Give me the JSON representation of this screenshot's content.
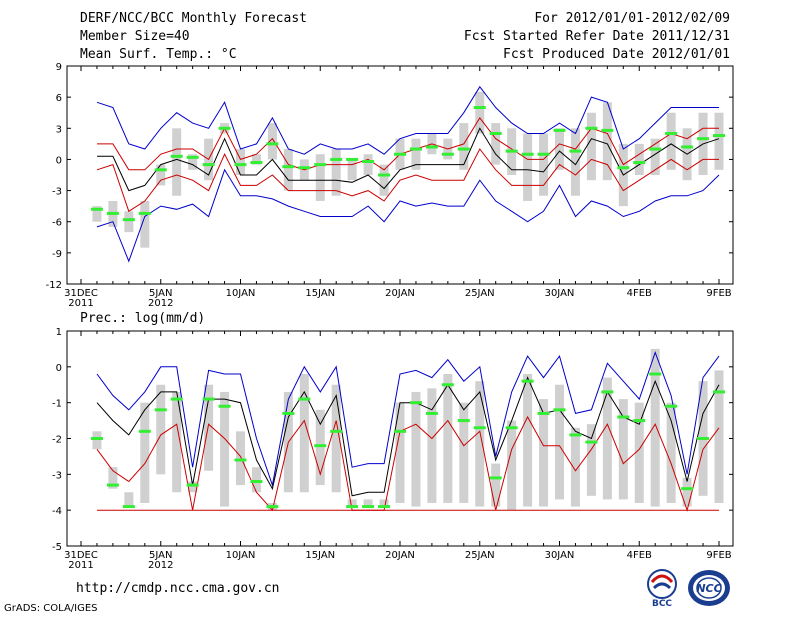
{
  "header": {
    "title": "DERF/NCC/BCC Monthly Forecast",
    "member_size": "Member Size=40",
    "variable1": "Mean Surf. Temp.: °C",
    "period": "For 2012/01/01-2012/02/09",
    "fcst_started": "Fcst Started Refer Date 2011/12/31",
    "fcst_produced": "Fcst Produced Date 2012/01/01"
  },
  "panel2_label": "Prec.: log(mm/d)",
  "footer": {
    "url": "http://cmdp.ncc.cma.gov.cn",
    "grads": "GrADS: COLA/IGES"
  },
  "logos": {
    "bcc": "BCC",
    "ncc": "NCC"
  },
  "colors": {
    "ensemble_max_min": "#0000cc",
    "spread": "#cc0000",
    "mean": "#000000",
    "box": "#d0d0d0",
    "median": "#33ee33"
  },
  "chart_data": [
    {
      "type": "line",
      "title": "Mean Surf. Temp.: °C",
      "x_tick_labels": [
        "31DEC\n2011",
        "5JAN\n2012",
        "10JAN",
        "15JAN",
        "20JAN",
        "25JAN",
        "30JAN",
        "4FEB",
        "9FEB"
      ],
      "x_tick_days": [
        0,
        5,
        10,
        15,
        20,
        25,
        30,
        35,
        40
      ],
      "ylim": [
        -12,
        9
      ],
      "y_ticks": [
        -12,
        -9,
        -6,
        -3,
        0,
        3,
        6,
        9
      ],
      "days": [
        1,
        2,
        3,
        4,
        5,
        6,
        7,
        8,
        9,
        10,
        11,
        12,
        13,
        14,
        15,
        16,
        17,
        18,
        19,
        20,
        21,
        22,
        23,
        24,
        25,
        26,
        27,
        28,
        29,
        30,
        31,
        32,
        33,
        34,
        35,
        36,
        37,
        38,
        39,
        40
      ],
      "series": [
        {
          "name": "max",
          "color": "#0000cc",
          "values": [
            5.5,
            5,
            1.5,
            1,
            3,
            4.5,
            3.5,
            3,
            5.5,
            1,
            1.5,
            4,
            1,
            0.5,
            1.5,
            1,
            1,
            1.5,
            0.5,
            2,
            2.5,
            2.5,
            2.5,
            4.5,
            7,
            5,
            3.5,
            2.5,
            2.5,
            3.5,
            2.5,
            6,
            5.5,
            1,
            2,
            3.5,
            5,
            5,
            5,
            5
          ]
        },
        {
          "name": "upper",
          "color": "#cc0000",
          "values": [
            1.5,
            1.5,
            -1,
            -1,
            0.5,
            1,
            1,
            0,
            3,
            0,
            0.5,
            2,
            -0.5,
            -1,
            -0.5,
            -0.5,
            -0.5,
            0,
            -1,
            0.5,
            1,
            1.5,
            1,
            1.5,
            4,
            2,
            1,
            0,
            0,
            1.5,
            1,
            3,
            2.5,
            -0.5,
            0.5,
            1.5,
            2.5,
            2,
            3,
            3
          ]
        },
        {
          "name": "mean",
          "color": "#000000",
          "values": [
            0.3,
            0.3,
            -3,
            -2.5,
            -0.5,
            0,
            -0.5,
            -1.5,
            2,
            -1.5,
            -1.5,
            0,
            -2,
            -2,
            -2,
            -2,
            -2.2,
            -1.5,
            -2.8,
            -1,
            -0.5,
            -0.5,
            -0.5,
            -0.5,
            3,
            0.5,
            -1,
            -1,
            -1.2,
            0.8,
            -0.5,
            2,
            1.5,
            -1.5,
            -0.5,
            0.5,
            1.5,
            0.5,
            1.5,
            2
          ]
        },
        {
          "name": "lower",
          "color": "#cc0000",
          "values": [
            -1,
            -0.5,
            -5,
            -4,
            -2,
            -1.5,
            -2,
            -3,
            0.5,
            -2.5,
            -2.5,
            -1.5,
            -3,
            -3,
            -3,
            -3,
            -3.5,
            -3,
            -4,
            -2,
            -1.5,
            -2,
            -2,
            -2,
            1,
            -1,
            -2.5,
            -2.5,
            -2.5,
            -0.5,
            -1.5,
            0,
            -0.5,
            -3,
            -2,
            -1,
            0,
            -1,
            0,
            0
          ]
        },
        {
          "name": "min",
          "color": "#0000cc",
          "values": [
            -6.5,
            -6,
            -9.8,
            -5.5,
            -4.5,
            -4.8,
            -4.3,
            -5.5,
            -1,
            -3.5,
            -3.5,
            -3.8,
            -4.5,
            -5,
            -5.5,
            -5.5,
            -5.5,
            -4.5,
            -6,
            -4,
            -4.5,
            -4.2,
            -4.5,
            -4.5,
            -2,
            -4,
            -5,
            -6,
            -5,
            -2.5,
            -5.5,
            -4,
            -4.5,
            -5.5,
            -5,
            -4,
            -3.5,
            -3.5,
            -3,
            -1.5
          ]
        }
      ],
      "box_low": [
        -6,
        -6.5,
        -7,
        -8.5,
        -2.5,
        -3.5,
        -1,
        -2,
        2.5,
        -1.5,
        -0.5,
        0,
        -3,
        -2,
        -4,
        -3.5,
        -2,
        -1.5,
        -3.5,
        -1,
        -1,
        0.5,
        0,
        -1,
        2.5,
        -0.5,
        -1.5,
        -4,
        -3.5,
        -1,
        -3.5,
        -2,
        -2,
        -4.5,
        -1.5,
        -1.5,
        -1,
        -2,
        -1.5,
        -1
      ],
      "box_high": [
        -4.5,
        -4,
        -5,
        -4,
        -0.5,
        3,
        0.5,
        2,
        3.5,
        1,
        0.5,
        3.5,
        1,
        0,
        0.5,
        1,
        0,
        0.5,
        -0.5,
        2,
        2,
        2.5,
        2,
        3.5,
        6.5,
        3.5,
        3,
        2.5,
        2.5,
        3,
        3,
        4.5,
        5.5,
        1.5,
        1.5,
        2,
        4.5,
        3,
        4.5,
        4.5
      ],
      "medians": [
        -4.8,
        -5.2,
        -5.8,
        -5.2,
        -1,
        0.3,
        0.2,
        -0.5,
        3,
        -0.5,
        -0.3,
        1.5,
        -0.7,
        -0.8,
        -0.5,
        0,
        0,
        -0.2,
        -1.5,
        0.5,
        1,
        1.2,
        0.5,
        1,
        5,
        2.5,
        0.8,
        0.5,
        0.5,
        2.8,
        0.8,
        3,
        2.8,
        -0.8,
        -0.3,
        1,
        2.5,
        1.2,
        2,
        2.3
      ]
    },
    {
      "type": "line",
      "title": "Prec.: log(mm/d)",
      "x_tick_labels": [
        "31DEC\n2011",
        "5JAN\n2012",
        "10JAN",
        "15JAN",
        "20JAN",
        "25JAN",
        "30JAN",
        "4FEB",
        "9FEB"
      ],
      "x_tick_days": [
        0,
        5,
        10,
        15,
        20,
        25,
        30,
        35,
        40
      ],
      "ylim": [
        -5,
        1
      ],
      "y_ticks": [
        -5,
        -4,
        -3,
        -2,
        -1,
        0,
        1
      ],
      "days": [
        1,
        2,
        3,
        4,
        5,
        6,
        7,
        8,
        9,
        10,
        11,
        12,
        13,
        14,
        15,
        16,
        17,
        18,
        19,
        20,
        21,
        22,
        23,
        24,
        25,
        26,
        27,
        28,
        29,
        30,
        31,
        32,
        33,
        34,
        35,
        36,
        37,
        38,
        39,
        40
      ],
      "series": [
        {
          "name": "max",
          "color": "#0000cc",
          "values": [
            -0.2,
            -0.8,
            -1.2,
            -0.7,
            0,
            0,
            -2.8,
            -0.1,
            -0.2,
            -0.2,
            -2,
            -3.3,
            -0.9,
            0,
            -0.7,
            0,
            -2.8,
            -2.7,
            -2.7,
            -0.2,
            -0.1,
            -0.3,
            0.2,
            -0.4,
            0,
            -2.5,
            -0.7,
            0.3,
            -0.3,
            0.3,
            -1.3,
            -1.2,
            0.1,
            -0.4,
            -0.9,
            0.4,
            -0.8,
            -3,
            -0.3,
            0.3
          ]
        },
        {
          "name": "mean",
          "color": "#000000",
          "values": [
            -1,
            -1.5,
            -1.9,
            -1.2,
            -0.7,
            -0.7,
            -3.3,
            -0.9,
            -0.9,
            -1,
            -2.6,
            -3.4,
            -1.4,
            -0.7,
            -1.6,
            -0.8,
            -3.6,
            -3.5,
            -3.5,
            -1,
            -1,
            -1.2,
            -0.5,
            -1.2,
            -0.7,
            -2.6,
            -1.5,
            -0.3,
            -1.3,
            -1.2,
            -1.8,
            -2,
            -0.7,
            -1.4,
            -1.6,
            -0.4,
            -1.5,
            -3.2,
            -1.3,
            -0.5
          ]
        },
        {
          "name": "lower",
          "color": "#cc0000",
          "values": [
            -2.3,
            -2.9,
            -3.2,
            -2.7,
            -1.9,
            -1.6,
            -4,
            -1.6,
            -2,
            -2.5,
            -3.5,
            -4,
            -2.1,
            -1.5,
            -3,
            -1.5,
            -4,
            -4,
            -4,
            -1.8,
            -1.6,
            -2,
            -1.5,
            -2.2,
            -1.8,
            -4,
            -2.3,
            -1.4,
            -2.2,
            -2.2,
            -2.9,
            -2.3,
            -1.6,
            -2.7,
            -2.3,
            -1.6,
            -2.7,
            -4,
            -2.3,
            -1.7
          ]
        },
        {
          "name": "floor",
          "color": "#cc0000",
          "values": [
            -4,
            -4,
            -4,
            -4,
            -4,
            -4,
            -4,
            -4,
            -4,
            -4,
            -4,
            -4,
            -4,
            -4,
            -4,
            -4,
            -4,
            -4,
            -4,
            -4,
            -4,
            -4,
            -4,
            -4,
            -4,
            -4,
            -4,
            -4,
            -4,
            -4,
            -4,
            -4,
            -4,
            -4,
            -4,
            -4,
            -4,
            -4,
            -4,
            -4
          ]
        }
      ],
      "box_low": [
        -2.3,
        -3.4,
        -3.9,
        -3.8,
        -3,
        -3.5,
        -3.5,
        -2.9,
        -3.9,
        -3.3,
        -3.5,
        -4,
        -3.5,
        -3.5,
        -3.3,
        -3.5,
        -3.9,
        -3.9,
        -3.9,
        -3.8,
        -3.9,
        -3.8,
        -3.8,
        -3.8,
        -3.9,
        -3.9,
        -4,
        -3.9,
        -3.9,
        -3.7,
        -3.9,
        -3.6,
        -3.7,
        -3.7,
        -3.8,
        -3.9,
        -3.8,
        -3.9,
        -3.6,
        -3.8
      ],
      "box_high": [
        -1.8,
        -2.8,
        -3.5,
        -1,
        -0.5,
        -0.7,
        -3.2,
        -0.5,
        -0.7,
        -1.8,
        -2.8,
        -3.8,
        -0.7,
        -0.2,
        -1.2,
        -0.5,
        -3.7,
        -3.7,
        -3.7,
        -1,
        -0.7,
        -0.6,
        -0.2,
        -1,
        -0.4,
        -2.7,
        -1.5,
        -0.2,
        -0.9,
        -0.5,
        -1.7,
        -1.6,
        -0.3,
        -0.9,
        -1,
        0.5,
        -1,
        -3.1,
        -0.4,
        -0.1
      ],
      "medians": [
        -2,
        -3.3,
        -3.9,
        -1.8,
        -1.2,
        -0.9,
        -3.3,
        -0.9,
        -1.1,
        -2.6,
        -3.2,
        -3.9,
        -1.3,
        -0.9,
        -2.2,
        -1.8,
        -3.9,
        -3.9,
        -3.9,
        -1.8,
        -1,
        -1.3,
        -0.5,
        -1.5,
        -1.7,
        -3.1,
        -1.7,
        -0.4,
        -1.3,
        -1.2,
        -1.9,
        -2.1,
        -0.7,
        -1.4,
        -1.5,
        -0.2,
        -1.1,
        -3.4,
        -2,
        -0.7
      ]
    }
  ]
}
